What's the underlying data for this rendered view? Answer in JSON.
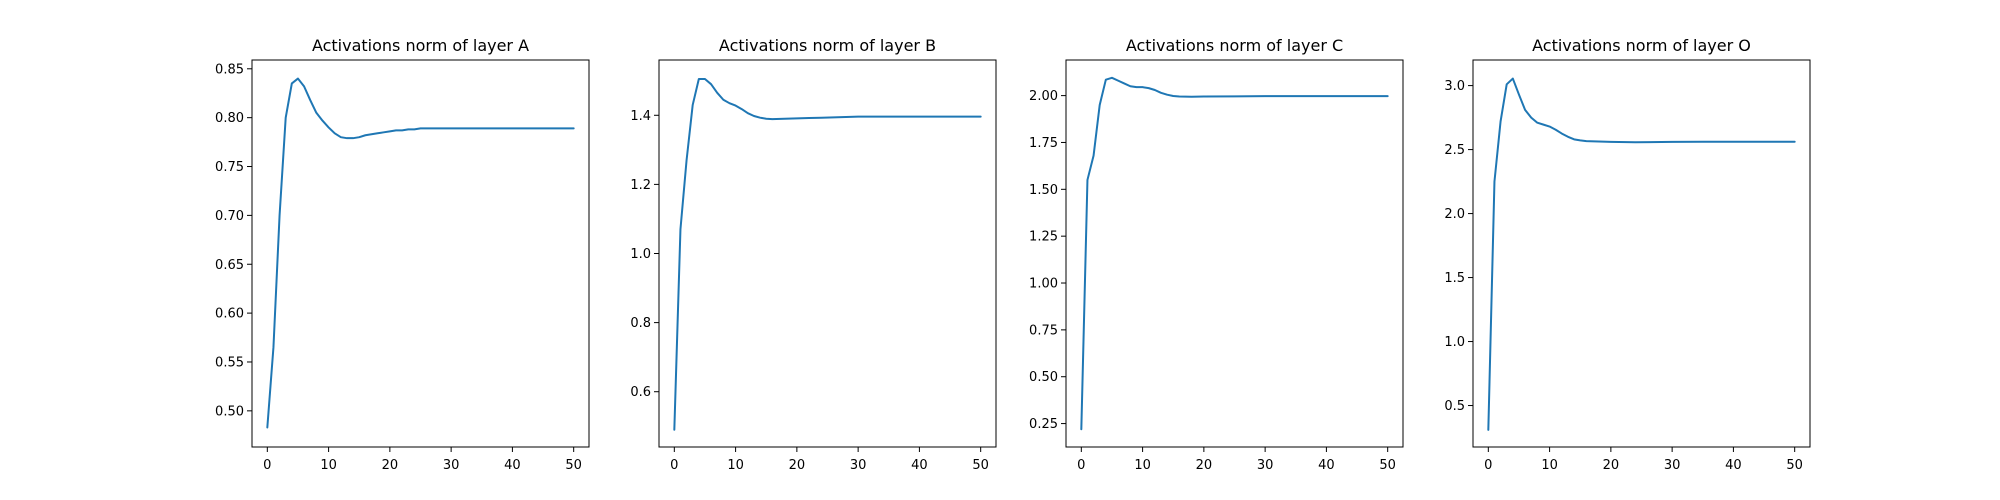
{
  "chart_data": [
    {
      "type": "line",
      "title": "Activations norm of layer A",
      "xlabel": "",
      "ylabel": "",
      "xlim": [
        -2.5,
        52.5
      ],
      "ylim": [
        0.463,
        0.859
      ],
      "xticks": [
        0,
        10,
        20,
        30,
        40,
        50
      ],
      "yticks": [
        0.5,
        0.55,
        0.6,
        0.65,
        0.7,
        0.75,
        0.8,
        0.85
      ],
      "ytick_labels": [
        "0.50",
        "0.55",
        "0.60",
        "0.65",
        "0.70",
        "0.75",
        "0.80",
        "0.85"
      ],
      "color": "#1f77b4",
      "x": [
        0,
        1,
        2,
        3,
        4,
        5,
        6,
        7,
        8,
        9,
        10,
        11,
        12,
        13,
        14,
        15,
        16,
        17,
        18,
        19,
        20,
        21,
        22,
        23,
        24,
        25,
        26,
        27,
        28,
        29,
        30,
        32,
        34,
        36,
        38,
        40,
        42,
        44,
        46,
        48,
        50
      ],
      "y": [
        0.483,
        0.565,
        0.7,
        0.8,
        0.835,
        0.84,
        0.832,
        0.818,
        0.805,
        0.797,
        0.79,
        0.784,
        0.78,
        0.779,
        0.779,
        0.78,
        0.782,
        0.783,
        0.784,
        0.785,
        0.786,
        0.787,
        0.787,
        0.788,
        0.788,
        0.789,
        0.789,
        0.789,
        0.789,
        0.789,
        0.789,
        0.789,
        0.789,
        0.789,
        0.789,
        0.789,
        0.789,
        0.789,
        0.789,
        0.789,
        0.789
      ]
    },
    {
      "type": "line",
      "title": "Activations norm of layer B",
      "xlabel": "",
      "ylabel": "",
      "xlim": [
        -2.5,
        52.5
      ],
      "ylim": [
        0.44,
        1.56
      ],
      "xticks": [
        0,
        10,
        20,
        30,
        40,
        50
      ],
      "yticks": [
        0.6,
        0.8,
        1.0,
        1.2,
        1.4
      ],
      "ytick_labels": [
        "0.6",
        "0.8",
        "1.0",
        "1.2",
        "1.4"
      ],
      "color": "#1f77b4",
      "x": [
        0,
        1,
        2,
        3,
        4,
        5,
        6,
        7,
        8,
        9,
        10,
        11,
        12,
        13,
        14,
        15,
        16,
        18,
        20,
        22,
        24,
        26,
        28,
        30,
        35,
        40,
        45,
        50
      ],
      "y": [
        0.49,
        1.07,
        1.27,
        1.43,
        1.505,
        1.505,
        1.49,
        1.465,
        1.445,
        1.435,
        1.428,
        1.418,
        1.406,
        1.398,
        1.393,
        1.39,
        1.389,
        1.39,
        1.391,
        1.392,
        1.393,
        1.394,
        1.395,
        1.396,
        1.396,
        1.396,
        1.396,
        1.396
      ]
    },
    {
      "type": "line",
      "title": "Activations norm of layer C",
      "xlabel": "",
      "ylabel": "",
      "xlim": [
        -2.5,
        52.5
      ],
      "ylim": [
        0.125,
        2.19
      ],
      "xticks": [
        0,
        10,
        20,
        30,
        40,
        50
      ],
      "yticks": [
        0.25,
        0.5,
        0.75,
        1.0,
        1.25,
        1.5,
        1.75,
        2.0
      ],
      "ytick_labels": [
        "0.25",
        "0.50",
        "0.75",
        "1.00",
        "1.25",
        "1.50",
        "1.75",
        "2.00"
      ],
      "color": "#1f77b4",
      "x": [
        0,
        1,
        2,
        3,
        4,
        5,
        6,
        7,
        8,
        9,
        10,
        11,
        12,
        13,
        14,
        15,
        16,
        18,
        20,
        25,
        30,
        35,
        40,
        45,
        50
      ],
      "y": [
        0.22,
        1.55,
        1.68,
        1.95,
        2.085,
        2.095,
        2.08,
        2.065,
        2.05,
        2.045,
        2.045,
        2.04,
        2.03,
        2.015,
        2.005,
        1.998,
        1.995,
        1.994,
        1.995,
        1.996,
        1.997,
        1.997,
        1.997,
        1.997,
        1.997
      ]
    },
    {
      "type": "line",
      "title": "Activations norm of layer O",
      "xlabel": "",
      "ylabel": "",
      "xlim": [
        -2.5,
        52.5
      ],
      "ylim": [
        0.176,
        3.2
      ],
      "xticks": [
        0,
        10,
        20,
        30,
        40,
        50
      ],
      "yticks": [
        0.5,
        1.0,
        1.5,
        2.0,
        2.5,
        3.0
      ],
      "ytick_labels": [
        "0.5",
        "1.0",
        "1.5",
        "2.0",
        "2.5",
        "3.0"
      ],
      "color": "#1f77b4",
      "x": [
        0,
        1,
        2,
        3,
        4,
        5,
        6,
        7,
        8,
        9,
        10,
        11,
        12,
        13,
        14,
        15,
        16,
        18,
        20,
        24,
        30,
        35,
        40,
        45,
        50
      ],
      "y": [
        0.31,
        2.25,
        2.72,
        3.01,
        3.055,
        2.93,
        2.81,
        2.75,
        2.71,
        2.695,
        2.68,
        2.655,
        2.625,
        2.6,
        2.58,
        2.572,
        2.566,
        2.563,
        2.56,
        2.557,
        2.56,
        2.561,
        2.561,
        2.561,
        2.561
      ]
    }
  ]
}
